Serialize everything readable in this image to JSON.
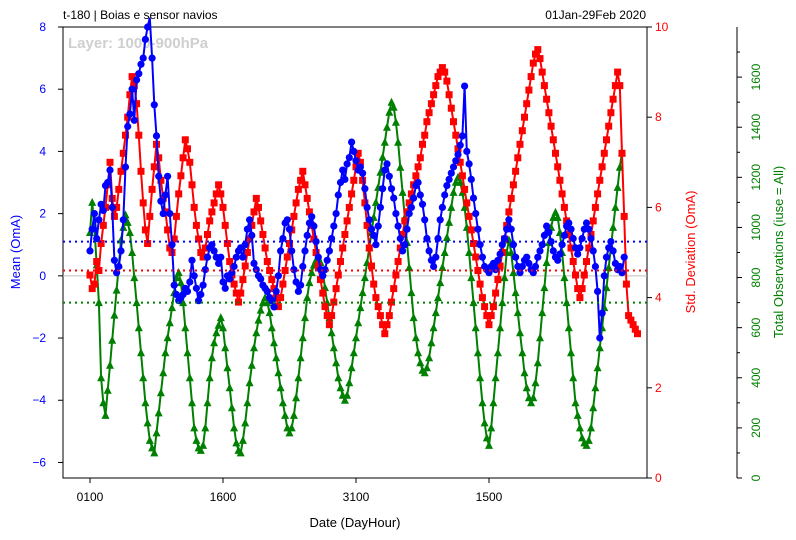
{
  "header": {
    "left_title": "t-180  |  Boias e sensor navios",
    "right_title": "01Jan-29Feb 2020",
    "layer_label": "Layer: 1000-900hPa"
  },
  "axes": {
    "xlabel": "Date (DayHour)",
    "ylabel_left": "Mean (OmA)",
    "ylabel_right": "Std. Deviation (OmA)",
    "ylabel_far_right": "Total Observations (iuse = All)",
    "x_ticks": [
      "0100",
      "1600",
      "3100",
      "1500"
    ],
    "left_ticks": [
      "8",
      "6",
      "4",
      "2",
      "0",
      "−2",
      "−4",
      "−6"
    ],
    "right_ticks": [
      "10",
      "8",
      "6",
      "4",
      "2",
      "0"
    ],
    "far_right_ticks": [
      "1600",
      "1400",
      "1200",
      "1000",
      "800",
      "600",
      "400",
      "200",
      "0"
    ]
  },
  "colors": {
    "mean": "#0000ff",
    "std": "#ff0000",
    "count": "#008000"
  },
  "chart_data": {
    "type": "line",
    "x_index_range": [
      0,
      240
    ],
    "x_tick_indices": [
      0,
      60,
      120,
      180
    ],
    "ylim_left": [
      -6.5,
      8
    ],
    "ylim_right": [
      0,
      10
    ],
    "ylim_far_right": [
      0,
      1800
    ],
    "series": [
      {
        "name": "Mean (OmA)",
        "axis": "left",
        "mean_line": 1.1,
        "values": [
          0.8,
          1.5,
          2.0,
          1.2,
          1.8,
          2.3,
          2.1,
          2.9,
          3.0,
          3.4,
          2.2,
          0.5,
          0.1,
          0.3,
          0.8,
          1.8,
          3.5,
          4.8,
          5.2,
          6.0,
          5.0,
          6.3,
          6.5,
          6.8,
          7.0,
          7.6,
          8.0,
          8.3,
          7.0,
          5.5,
          4.5,
          3.2,
          2.4,
          2.0,
          2.6,
          3.2,
          2.0,
          1.0,
          -0.3,
          -0.6,
          -0.8,
          -0.7,
          -0.6,
          -0.4,
          -0.5,
          -0.2,
          0.5,
          0.0,
          -0.4,
          -0.8,
          -0.6,
          -0.3,
          0.2,
          0.6,
          0.9,
          1.0,
          0.8,
          0.6,
          0.4,
          0.6,
          -0.2,
          -0.4,
          0.0,
          -0.1,
          0.1,
          0.3,
          0.6,
          0.8,
          0.9,
          0.6,
          1.0,
          1.5,
          1.8,
          1.3,
          0.4,
          0.2,
          0.0,
          -0.1,
          -0.3,
          -0.4,
          -0.5,
          -0.7,
          -0.8,
          -1.0,
          -0.5,
          0.0,
          0.8,
          1.2,
          1.7,
          1.8,
          1.5,
          0.8,
          0.2,
          -0.2,
          -0.5,
          -0.3,
          0.3,
          0.8,
          1.3,
          1.7,
          1.9,
          1.6,
          1.1,
          0.6,
          0.2,
          0.0,
          0.2,
          0.5,
          0.8,
          1.2,
          1.6,
          2.0,
          2.6,
          3.0,
          3.4,
          3.1,
          3.6,
          3.8,
          4.3,
          4.0,
          3.7,
          3.4,
          3.5,
          3.3,
          2.8,
          2.2,
          1.8,
          1.5,
          1.3,
          1.0,
          1.6,
          2.2,
          2.8,
          3.4,
          3.6,
          3.2,
          2.8,
          2.5,
          2.0,
          1.6,
          1.2,
          0.8,
          1.0,
          1.5,
          2.0,
          2.2,
          2.5,
          2.9,
          3.0,
          2.6,
          2.3,
          1.8,
          1.2,
          0.8,
          0.5,
          0.3,
          0.6,
          1.2,
          1.8,
          2.2,
          2.6,
          2.9,
          3.1,
          3.3,
          3.5,
          3.7,
          3.9,
          4.2,
          4.5,
          6.1,
          4.0,
          3.6,
          3.1,
          2.5,
          2.0,
          1.5,
          1.0,
          0.6,
          0.3,
          0.2,
          0.1,
          0.3,
          0.4,
          0.2,
          0.5,
          0.7,
          1.0,
          1.2,
          1.5,
          1.8,
          1.5,
          1.0,
          0.6,
          0.3,
          0.1,
          0.3,
          0.5,
          0.6,
          0.4,
          0.2,
          0.1,
          0.3,
          0.6,
          0.8,
          1.0,
          1.3,
          1.6,
          1.4,
          1.1,
          0.8,
          0.6,
          0.5,
          0.7,
          1.0,
          1.3,
          1.6,
          1.7,
          1.5,
          1.2,
          0.9,
          0.7,
          0.9,
          1.2,
          1.5,
          1.7,
          1.5,
          1.2,
          0.8,
          0.3,
          -0.5,
          -2.0,
          -1.2,
          0.0,
          0.6,
          0.9,
          1.1,
          0.8,
          0.4,
          0.2,
          0.3,
          0.1,
          0.6
        ]
      },
      {
        "name": "Std. Deviation (OmA)",
        "axis": "right",
        "mean_line": 4.6,
        "values": [
          4.5,
          4.2,
          4.3,
          4.8,
          4.6,
          5.2,
          5.6,
          6.0,
          6.5,
          7.0,
          6.2,
          5.8,
          6.0,
          6.4,
          6.8,
          7.2,
          7.6,
          8.0,
          8.5,
          8.9,
          8.7,
          8.3,
          7.6,
          6.8,
          6.1,
          5.5,
          5.2,
          5.8,
          6.4,
          6.9,
          7.4,
          7.1,
          6.6,
          6.2,
          5.9,
          5.5,
          5.1,
          5.0,
          5.3,
          5.8,
          6.3,
          6.7,
          7.1,
          7.5,
          7.3,
          7.0,
          6.5,
          6.0,
          5.6,
          5.3,
          5.0,
          4.9,
          5.1,
          5.4,
          5.7,
          5.9,
          6.1,
          6.3,
          6.5,
          6.3,
          6.0,
          5.6,
          5.2,
          4.8,
          4.5,
          4.3,
          4.1,
          3.9,
          4.1,
          4.4,
          4.7,
          5.0,
          5.3,
          5.6,
          5.9,
          6.2,
          6.0,
          5.7,
          5.4,
          5.1,
          4.8,
          4.6,
          4.4,
          4.2,
          4.0,
          3.8,
          4.0,
          4.3,
          4.6,
          4.9,
          5.2,
          5.5,
          5.8,
          6.1,
          6.4,
          6.6,
          6.8,
          6.5,
          6.2,
          5.9,
          5.6,
          5.3,
          5.0,
          4.7,
          4.4,
          4.1,
          3.8,
          3.6,
          3.4,
          3.6,
          3.9,
          4.2,
          4.5,
          4.8,
          5.1,
          5.4,
          5.7,
          6.0,
          6.3,
          6.6,
          6.9,
          7.2,
          7.0,
          6.6,
          6.1,
          5.6,
          5.1,
          4.7,
          4.3,
          4.0,
          3.8,
          3.6,
          3.4,
          3.2,
          3.4,
          3.6,
          3.9,
          4.2,
          4.5,
          4.8,
          5.1,
          5.4,
          5.7,
          5.9,
          6.1,
          6.3,
          6.5,
          6.7,
          6.9,
          7.1,
          7.4,
          7.6,
          7.9,
          8.1,
          8.3,
          8.5,
          8.7,
          8.9,
          9.0,
          9.1,
          9.0,
          8.8,
          8.5,
          8.2,
          7.9,
          7.6,
          7.3,
          7.0,
          6.7,
          6.4,
          6.1,
          5.8,
          5.5,
          5.2,
          4.9,
          4.6,
          4.3,
          4.0,
          3.8,
          3.6,
          3.4,
          3.6,
          3.8,
          4.1,
          4.4,
          4.7,
          5.0,
          5.3,
          5.6,
          5.9,
          6.2,
          6.5,
          6.8,
          7.1,
          7.4,
          7.7,
          8.0,
          8.3,
          8.6,
          8.9,
          9.2,
          9.4,
          9.5,
          9.3,
          9.0,
          8.7,
          8.4,
          8.1,
          7.8,
          7.5,
          7.2,
          6.9,
          6.6,
          6.3,
          6.0,
          5.7,
          5.4,
          5.1,
          4.8,
          4.5,
          4.2,
          4.0,
          4.2,
          4.5,
          4.8,
          5.1,
          5.4,
          5.7,
          6.0,
          6.3,
          6.6,
          6.9,
          7.2,
          7.5,
          7.8,
          8.1,
          8.4,
          8.7,
          9.0,
          8.7,
          7.2,
          5.8,
          4.3,
          3.6,
          3.5,
          3.4,
          3.3,
          3.2
        ]
      },
      {
        "name": "Total Observations",
        "axis": "far_right",
        "mean_line": 700,
        "values": [
          980,
          1100,
          1000,
          850,
          700,
          400,
          300,
          250,
          350,
          450,
          550,
          650,
          750,
          850,
          950,
          1000,
          1050,
          1020,
          980,
          900,
          800,
          700,
          600,
          500,
          400,
          300,
          220,
          150,
          120,
          100,
          180,
          260,
          340,
          420,
          500,
          560,
          620,
          680,
          740,
          800,
          820,
          780,
          700,
          600,
          500,
          400,
          300,
          200,
          150,
          120,
          110,
          130,
          200,
          300,
          400,
          480,
          540,
          580,
          610,
          640,
          600,
          520,
          440,
          360,
          280,
          200,
          140,
          110,
          100,
          150,
          220,
          300,
          380,
          450,
          520,
          580,
          630,
          670,
          700,
          720,
          700,
          660,
          600,
          540,
          480,
          420,
          360,
          300,
          250,
          200,
          180,
          200,
          250,
          320,
          400,
          480,
          560,
          640,
          720,
          780,
          820,
          850,
          870,
          880,
          860,
          820,
          760,
          700,
          640,
          580,
          520,
          460,
          400,
          360,
          330,
          310,
          330,
          380,
          440,
          500,
          560,
          620,
          680,
          740,
          800,
          860,
          920,
          980,
          1040,
          1100,
          1160,
          1220,
          1280,
          1340,
          1400,
          1460,
          1500,
          1480,
          1420,
          1340,
          1240,
          1140,
          1040,
          940,
          840,
          740,
          640,
          560,
          500,
          460,
          430,
          420,
          440,
          480,
          540,
          600,
          660,
          720,
          780,
          840,
          900,
          960,
          1020,
          1080,
          1140,
          1180,
          1200,
          1180,
          1140,
          1080,
          1000,
          900,
          800,
          700,
          600,
          500,
          400,
          300,
          220,
          160,
          130,
          200,
          300,
          400,
          500,
          600,
          700,
          800,
          900,
          950,
          900,
          820,
          740,
          660,
          580,
          500,
          420,
          360,
          320,
          300,
          320,
          380,
          460,
          560,
          660,
          760,
          860,
          940,
          1000,
          1040,
          1060,
          1040,
          980,
          900,
          800,
          700,
          600,
          500,
          400,
          300,
          250,
          200,
          160,
          140,
          130,
          150,
          200,
          280,
          360,
          440,
          520,
          600,
          680,
          760,
          840,
          920,
          1000,
          1080,
          1160,
          1240,
          1300
        ]
      }
    ]
  }
}
